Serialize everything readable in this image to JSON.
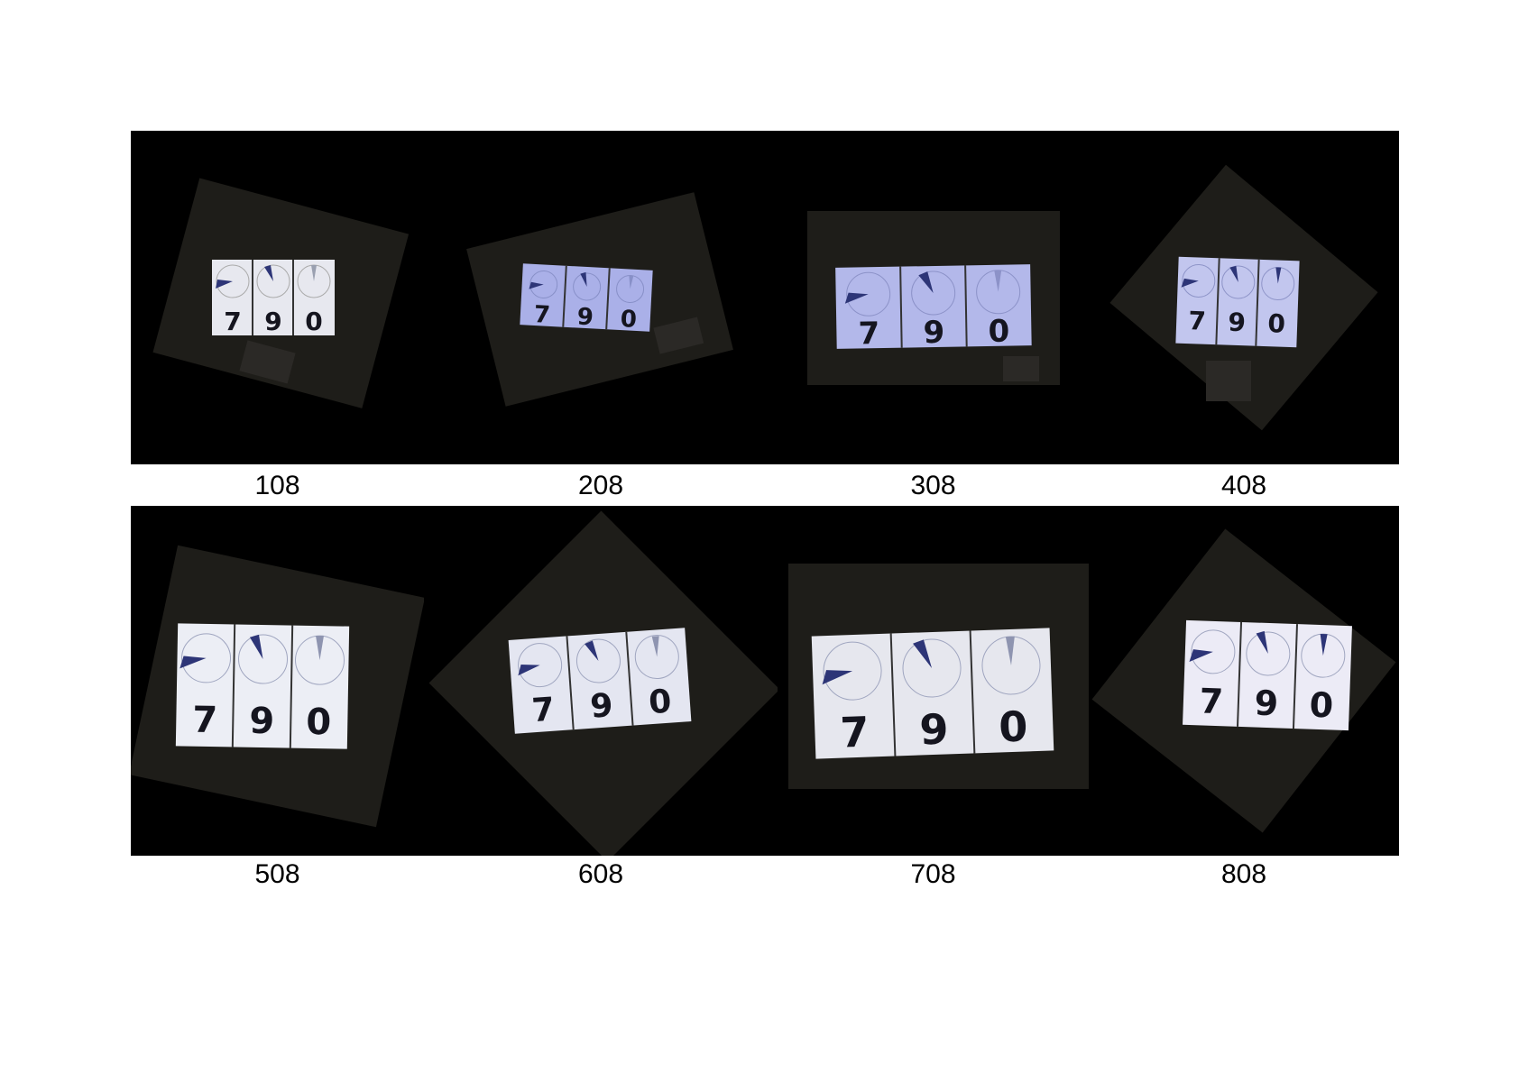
{
  "figure": {
    "panels": [
      {
        "label": "108",
        "display_digits": [
          "7",
          "9",
          "0"
        ],
        "brightness": 0.98
      },
      {
        "label": "208",
        "display_digits": [
          "7",
          "9",
          "0"
        ],
        "brightness": 0.78
      },
      {
        "label": "308",
        "display_digits": [
          "7",
          "9",
          "0"
        ],
        "brightness": 0.8
      },
      {
        "label": "408",
        "display_digits": [
          "7",
          "9",
          "0"
        ],
        "brightness": 0.88
      },
      {
        "label": "508",
        "display_digits": [
          "7",
          "9",
          "0"
        ],
        "brightness": 0.97
      },
      {
        "label": "608",
        "display_digits": [
          "7",
          "9",
          "0"
        ],
        "brightness": 0.95
      },
      {
        "label": "708",
        "display_digits": [
          "7",
          "9",
          "0"
        ],
        "brightness": 0.9
      },
      {
        "label": "808",
        "display_digits": [
          "7",
          "9",
          "0"
        ],
        "brightness": 0.93
      }
    ],
    "colors": {
      "panel_background": "#000000",
      "card_background": "#1e1d19",
      "display_face": "#e8eaf2",
      "display_face_blue": "#aab0e8",
      "pointer": "#2d3577",
      "digit": "#15151f"
    }
  }
}
